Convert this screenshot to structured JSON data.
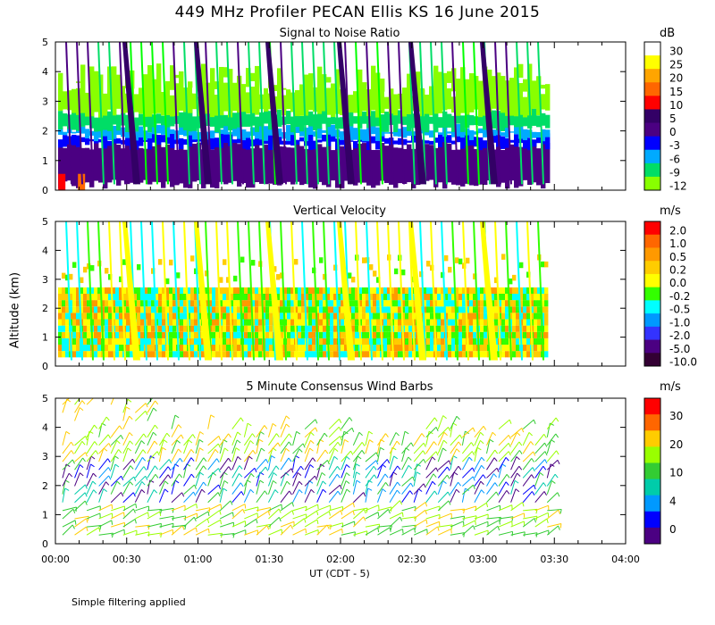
{
  "title": "449 MHz Profiler PECAN Ellis KS 16 June 2015",
  "y_axis_label": "Altitude (km)",
  "x_axis_label": "UT  (CDT - 5)",
  "footnote": "Simple filtering applied",
  "colors": {
    "white": "#ffffff",
    "yellow": "#ffff00",
    "orange": "#ffa500",
    "red": "#ff0000",
    "darkpurple": "#330066",
    "purple": "#4b0082",
    "blue": "#0000ff",
    "lightblue": "#00aaff",
    "cyan": "#00ffff",
    "green": "#00ff00",
    "lightgreen": "#99ff00"
  },
  "chart_data": [
    {
      "type": "heatmap",
      "title": "Signal to Noise Ratio",
      "unit": "dB",
      "ylabel": "Altitude (km)",
      "xlabel": "UT  (CDT - 5)",
      "ylim": [
        0,
        5
      ],
      "yticks": [
        "0",
        "1",
        "2",
        "3",
        "4",
        "5"
      ],
      "colorbar": {
        "labels": [
          "30",
          "25",
          "20",
          "15",
          "10",
          "5",
          "0",
          "-3",
          "-6",
          "-9",
          "-12"
        ],
        "colors": [
          "#ffffff",
          "#ffff00",
          "#ffa500",
          "#ff6600",
          "#ff0000",
          "#330066",
          "#4b0082",
          "#0000ff",
          "#00aaff",
          "#00dd66",
          "#88ff00"
        ]
      },
      "layers_km": [
        {
          "color": "#4b0082",
          "from": 0.2,
          "to": 1.5
        },
        {
          "color": "#0000ff",
          "from": 1.5,
          "to": 1.8
        },
        {
          "color": "#00aaff",
          "from": 1.8,
          "to": 2.1
        },
        {
          "color": "#00dd66",
          "from": 2.1,
          "to": 2.6
        },
        {
          "color": "#88ff00",
          "from": 2.6,
          "to": 4.3
        }
      ]
    },
    {
      "type": "heatmap",
      "title": "Vertical Velocity",
      "unit": "m/s",
      "ylabel": "Altitude (km)",
      "xlabel": "UT  (CDT - 5)",
      "ylim": [
        0,
        5
      ],
      "yticks": [
        "0",
        "1",
        "2",
        "3",
        "4",
        "5"
      ],
      "colorbar": {
        "labels": [
          "2.0",
          "1.0",
          "0.5",
          "0.2",
          "0.0",
          "-0.2",
          "-0.5",
          "-1.0",
          "-2.0",
          "-5.0",
          "-10.0"
        ],
        "colors": [
          "#ff0000",
          "#ff6600",
          "#ff9900",
          "#ffcc00",
          "#ffff00",
          "#33ff00",
          "#00ffff",
          "#0099ff",
          "#3333ff",
          "#4b0082",
          "#330033"
        ]
      }
    },
    {
      "type": "scatter",
      "title": "5 Minute Consensus Wind Barbs",
      "unit": "m/s",
      "ylabel": "Altitude (km)",
      "xlabel": "UT  (CDT - 5)",
      "ylim": [
        0,
        5
      ],
      "yticks": [
        "0",
        "1",
        "2",
        "3",
        "4",
        "5"
      ],
      "xticks": [
        "00:00",
        "00:30",
        "01:00",
        "01:30",
        "02:00",
        "02:30",
        "03:00",
        "03:30",
        "04:00"
      ],
      "xlim_hours": [
        0,
        4
      ],
      "data_extent_hours": [
        0,
        3.45
      ],
      "colorbar": {
        "labels": [
          "30",
          "20",
          "10",
          "4",
          "0"
        ],
        "colors": [
          "#ff0000",
          "#ff6600",
          "#ffcc00",
          "#99ff00",
          "#33cc33",
          "#00ccaa",
          "#0099ff",
          "#0000ff",
          "#4b0082"
        ]
      }
    }
  ]
}
